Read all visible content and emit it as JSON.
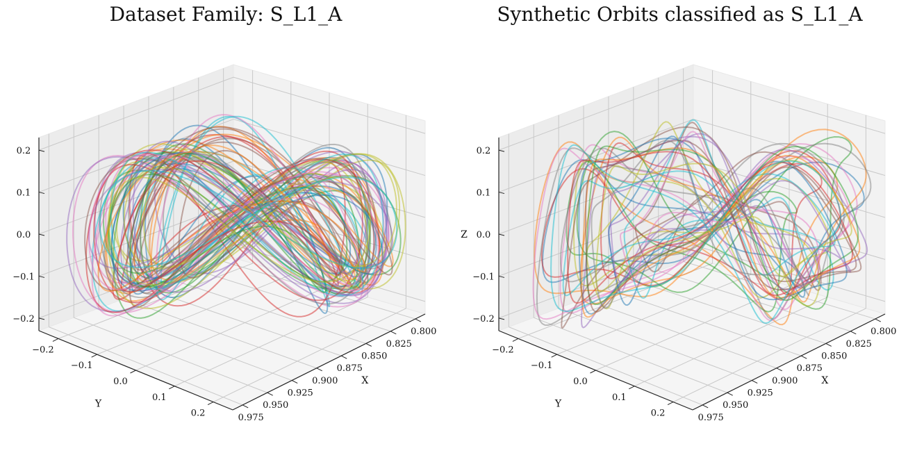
{
  "chart_data": [
    {
      "type": "line",
      "plot3d": true,
      "title": "Dataset Family: S_L1_A",
      "xlabel": "X",
      "ylabel": "Y",
      "zlabel": "",
      "x_ticks": [
        "0.800",
        "0.825",
        "0.850",
        "0.875",
        "0.900",
        "0.925",
        "0.950",
        "0.975"
      ],
      "y_ticks": [
        "−0.2",
        "−0.1",
        "0.0",
        "0.1",
        "0.2"
      ],
      "z_ticks": [
        "−0.2",
        "−0.1",
        "0.0",
        "0.1",
        "0.2"
      ],
      "xlim": [
        0.79,
        0.985
      ],
      "ylim": [
        -0.25,
        0.25
      ],
      "zlim": [
        -0.23,
        0.23
      ],
      "grid": true,
      "orbit_count_estimate": 60,
      "series_shape": "closed orbits around x≈0.89, extent y≈±0.23, z≈±0.2 with a fold toward the far side"
    },
    {
      "type": "line",
      "plot3d": true,
      "title": "Synthetic Orbits classified as S_L1_A",
      "xlabel": "X",
      "ylabel": "Y",
      "zlabel": "Z",
      "x_ticks": [
        "0.800",
        "0.825",
        "0.850",
        "0.875",
        "0.900",
        "0.925",
        "0.950",
        "0.975"
      ],
      "y_ticks": [
        "−0.2",
        "−0.1",
        "0.0",
        "0.1",
        "0.2"
      ],
      "z_ticks": [
        "−0.2",
        "−0.1",
        "0.0",
        "0.1",
        "0.2"
      ],
      "xlim": [
        0.79,
        0.985
      ],
      "ylim": [
        -0.25,
        0.25
      ],
      "zlim": [
        -0.23,
        0.23
      ],
      "grid": true,
      "orbit_count_estimate": 30,
      "series_shape": "irregular closed orbits, same region, noisier"
    }
  ],
  "colors": [
    "#1f77b4",
    "#ff7f0e",
    "#2ca02c",
    "#d62728",
    "#9467bd",
    "#8c564b",
    "#e377c2",
    "#7f7f7f",
    "#bcbd22",
    "#17becf"
  ]
}
